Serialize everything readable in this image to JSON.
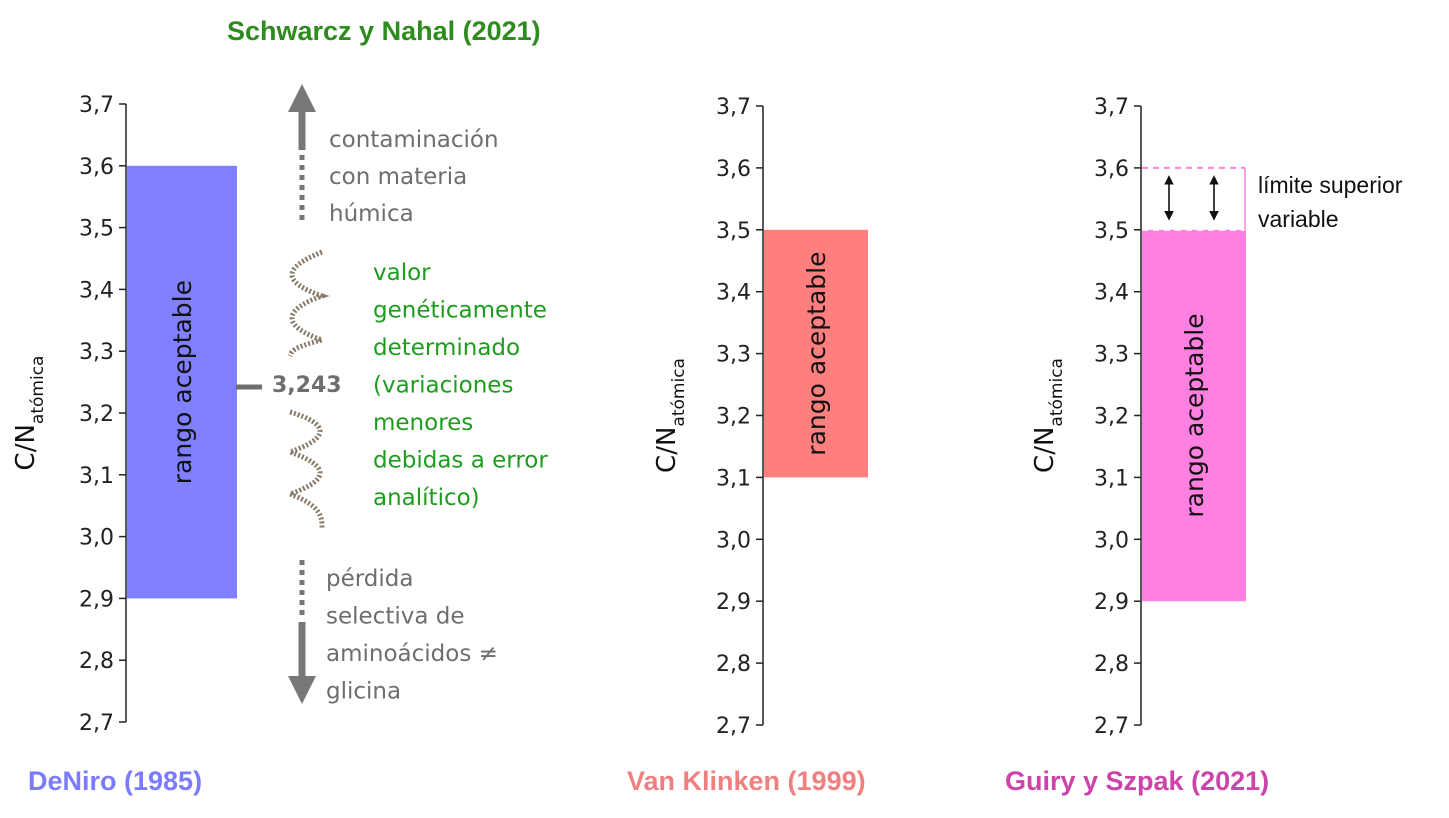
{
  "header": {
    "title": "Schwarcz y Nahal (2021)",
    "title_color": "#2e8b1e"
  },
  "axis_label": {
    "main": "C/N",
    "sub": "atómica"
  },
  "bar_label": "rango aceptable",
  "ticks": [
    "2,7",
    "2,8",
    "2,9",
    "3,0",
    "3,1",
    "3,2",
    "3,3",
    "3,4",
    "3,5",
    "3,6",
    "3,7"
  ],
  "annotations": {
    "contamination": [
      "contaminación",
      "con materia",
      "húmica"
    ],
    "genetic": [
      "valor",
      "genéticamente",
      "determinado",
      "(variaciones",
      "menores",
      "debidas a error",
      "analítico)"
    ],
    "loss": [
      "pérdida",
      "selectiva de",
      "aminoácidos ≠",
      "glicina"
    ],
    "value_label": "3,243",
    "upper_limit": [
      "límite superior",
      "variable"
    ],
    "gray_color": "#6e6e6e",
    "green_color": "#1e9c1e"
  },
  "chart_data": [
    {
      "type": "bar",
      "citation": "DeNiro (1985)",
      "citation_color": "#7b7bff",
      "bar_color": "#8080ff",
      "y_range": [
        2.9,
        3.6
      ],
      "ylim": [
        2.7,
        3.7
      ],
      "marker_value": 3.243,
      "ylabel": "C/N atómica",
      "bar_label": "rango aceptable"
    },
    {
      "type": "bar",
      "citation": "Van Klinken (1999)",
      "citation_color": "#f08080",
      "bar_color": "#ff7f7f",
      "y_range": [
        3.1,
        3.5
      ],
      "ylim": [
        2.7,
        3.7
      ],
      "ylabel": "C/N atómica",
      "bar_label": "rango aceptable"
    },
    {
      "type": "bar",
      "citation": "Guiry y Szpak (2021)",
      "citation_color": "#cc44aa",
      "bar_color": "#ff80e0",
      "y_range": [
        2.9,
        3.5
      ],
      "variable_upper_limit": [
        3.5,
        3.6
      ],
      "ylim": [
        2.7,
        3.7
      ],
      "ylabel": "C/N atómica",
      "bar_label": "rango aceptable"
    }
  ]
}
